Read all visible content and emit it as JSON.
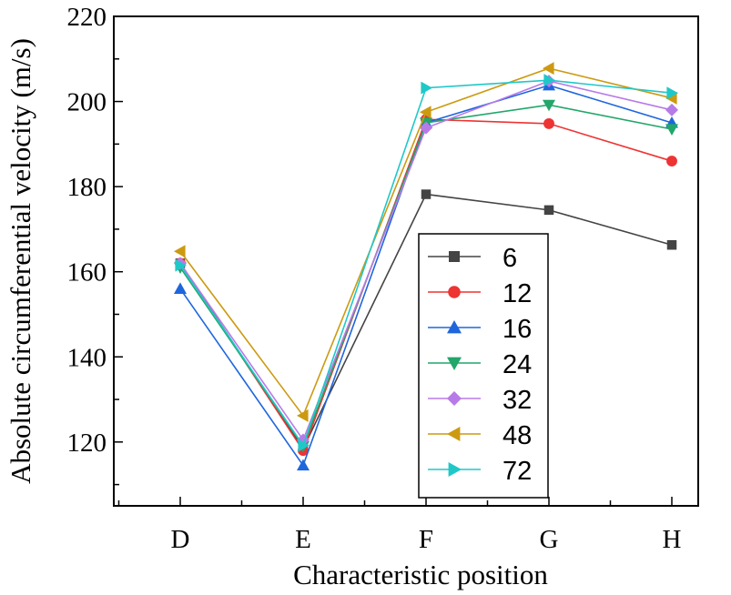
{
  "chart_data": {
    "type": "line",
    "xlabel": "Characteristic position",
    "ylabel": "Absolute circumferential velocity (m/s)",
    "categories": [
      "D",
      "E",
      "F",
      "G",
      "H"
    ],
    "ylim": [
      105,
      220
    ],
    "yticks": [
      120,
      140,
      160,
      180,
      200,
      220
    ],
    "grid": false,
    "legend_position": "inside-right",
    "series": [
      {
        "name": "6",
        "color": "#444444",
        "marker": "square",
        "values": [
          162.0,
          118.5,
          178.2,
          174.5,
          166.3
        ]
      },
      {
        "name": "12",
        "color": "#ee3333",
        "marker": "circle",
        "values": [
          162.0,
          118.0,
          195.8,
          194.8,
          186.0
        ]
      },
      {
        "name": "16",
        "color": "#1f66dd",
        "marker": "triangle-up",
        "values": [
          156.0,
          114.5,
          195.0,
          203.8,
          195.0
        ]
      },
      {
        "name": "24",
        "color": "#22a66a",
        "marker": "triangle-down",
        "values": [
          161.0,
          119.0,
          195.0,
          199.2,
          193.5
        ]
      },
      {
        "name": "32",
        "color": "#b77be8",
        "marker": "diamond",
        "values": [
          162.0,
          120.5,
          193.8,
          204.8,
          198.0
        ]
      },
      {
        "name": "48",
        "color": "#cc9a11",
        "marker": "triangle-left",
        "values": [
          164.8,
          126.2,
          197.5,
          207.8,
          200.8
        ]
      },
      {
        "name": "72",
        "color": "#1fc8c8",
        "marker": "triangle-right",
        "values": [
          161.5,
          119.2,
          203.2,
          205.0,
          202.0
        ]
      }
    ]
  }
}
